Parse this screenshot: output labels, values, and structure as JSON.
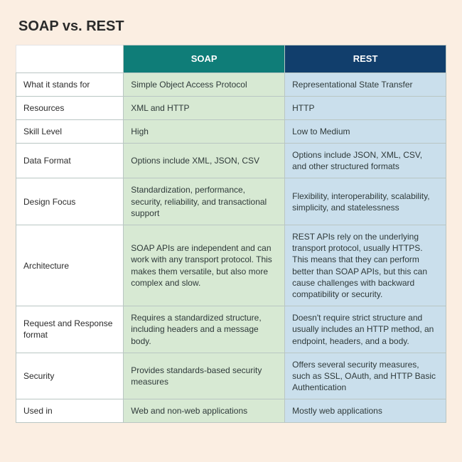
{
  "title": "SOAP vs. REST",
  "table": {
    "type": "table",
    "background_color": "#fbeee2",
    "border_color": "#b9c6c3",
    "text_color": "#2f3a3a",
    "font_size": 12,
    "header": {
      "corner": "",
      "soap": {
        "label": "SOAP",
        "bg": "#0f7d78",
        "fg": "#ffffff"
      },
      "rest": {
        "label": "REST",
        "bg": "#113e6c",
        "fg": "#ffffff"
      }
    },
    "column_colors": {
      "row_label_bg": "#ffffff",
      "soap_bg": "#d7e9d3",
      "rest_bg": "#cadfec"
    },
    "columns": [
      "",
      "SOAP",
      "REST"
    ],
    "column_widths_pct": [
      25,
      37.5,
      37.5
    ],
    "rows": [
      {
        "label": "What it stands for",
        "soap": "Simple Object Access Protocol",
        "rest": "Representational State Transfer"
      },
      {
        "label": "Resources",
        "soap": "XML and HTTP",
        "rest": "HTTP"
      },
      {
        "label": "Skill Level",
        "soap": "High",
        "rest": "Low to Medium"
      },
      {
        "label": "Data Format",
        "soap": "Options include XML, JSON, CSV",
        "rest": "Options include JSON, XML, CSV, and other structured formats"
      },
      {
        "label": "Design Focus",
        "soap": "Standardization, performance, security, reliability, and transactional support",
        "rest": "Flexibility, interoperability, scalability, simplicity, and statelessness"
      },
      {
        "label": "Architecture",
        "soap": "SOAP APIs are independent and can work with any transport protocol. This makes them versatile, but also more complex and slow.",
        "rest": "REST APIs rely on the underlying transport protocol, usually HTTPS. This means that they can perform better than SOAP APIs, but this can cause challenges with backward compatibility or security."
      },
      {
        "label": "Request and Response format",
        "soap": "Requires a standardized structure, including headers and a message body.",
        "rest": "Doesn't require strict structure and usually includes an HTTP method, an endpoint, headers, and a body."
      },
      {
        "label": "Security",
        "soap": "Provides standards-based security measures",
        "rest": "Offers several security measures, such as SSL, OAuth, and HTTP Basic Authentication"
      },
      {
        "label": "Used in",
        "soap": "Web and non-web applications",
        "rest": "Mostly web applications"
      }
    ]
  }
}
